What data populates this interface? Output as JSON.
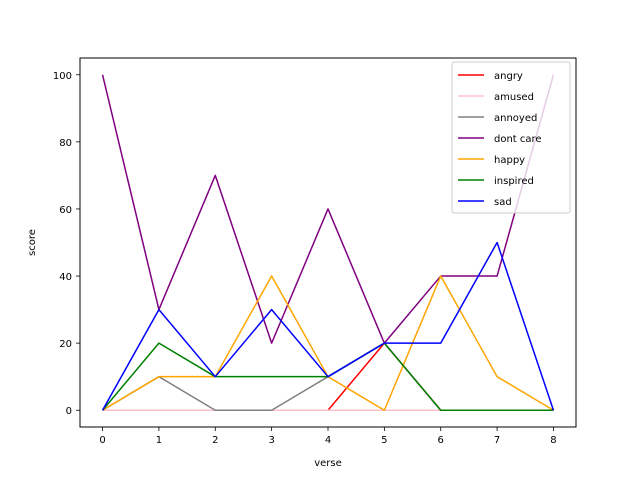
{
  "chart_data": {
    "type": "line",
    "title": "",
    "xlabel": "verse",
    "ylabel": "score",
    "x": [
      0,
      1,
      2,
      3,
      4,
      5,
      6,
      7,
      8
    ],
    "xlim": [
      -0.4,
      8.4
    ],
    "ylim": [
      -5,
      105
    ],
    "xticks": [
      0,
      1,
      2,
      3,
      4,
      5,
      6,
      7,
      8
    ],
    "yticks": [
      0,
      20,
      40,
      60,
      80,
      100
    ],
    "grid": false,
    "legend_position": "top-right",
    "series": [
      {
        "name": "angry",
        "color": "#ff0000",
        "values": [
          0,
          0,
          0,
          0,
          0,
          20,
          0,
          0,
          0
        ]
      },
      {
        "name": "amused",
        "color": "#ffc0cb",
        "values": [
          0,
          0,
          0,
          0,
          0,
          0,
          0,
          0,
          0
        ]
      },
      {
        "name": "annoyed",
        "color": "#808080",
        "values": [
          0,
          10,
          0,
          0,
          10,
          20,
          0,
          0,
          0
        ]
      },
      {
        "name": "dont care",
        "color": "#800080",
        "values": [
          100,
          30,
          70,
          20,
          60,
          20,
          40,
          40,
          100
        ]
      },
      {
        "name": "happy",
        "color": "#ffa500",
        "values": [
          0,
          10,
          10,
          40,
          10,
          0,
          40,
          10,
          0
        ]
      },
      {
        "name": "inspired",
        "color": "#008000",
        "values": [
          0,
          20,
          10,
          10,
          10,
          20,
          0,
          0,
          0
        ]
      },
      {
        "name": "sad",
        "color": "#0000ff",
        "values": [
          0,
          30,
          10,
          30,
          10,
          20,
          20,
          50,
          0
        ]
      }
    ]
  }
}
